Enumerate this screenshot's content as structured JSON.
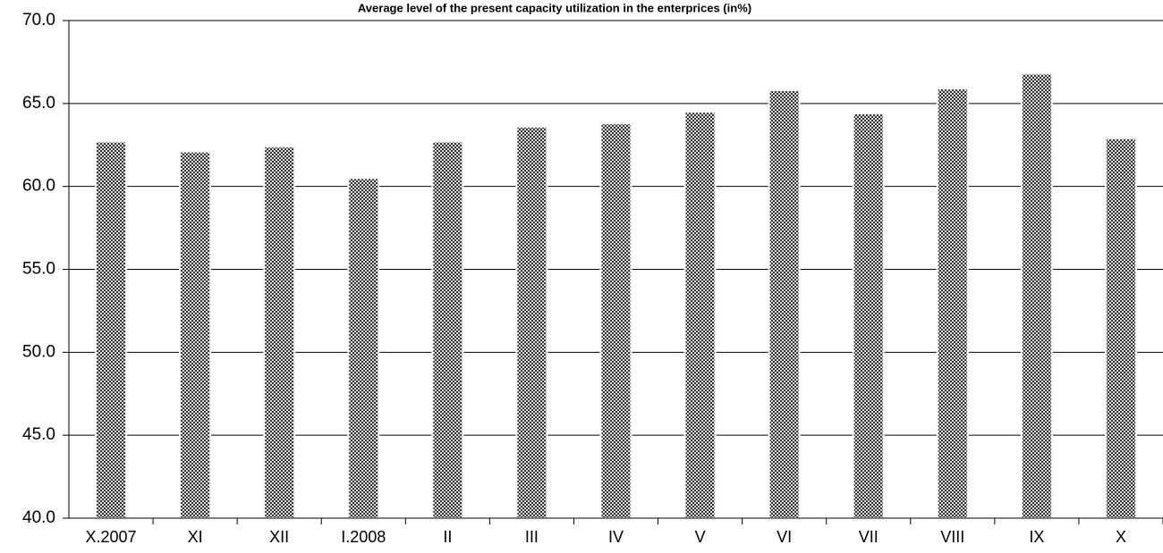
{
  "chart_data": {
    "type": "bar",
    "title": "Average level of the present capacity utilization in the enterprices (in%)",
    "categories": [
      "X.2007",
      "XI",
      "XII",
      "I.2008",
      "II",
      "III",
      "IV",
      "V",
      "VI",
      "VII",
      "VIII",
      "IX",
      "X"
    ],
    "values": [
      62.7,
      62.1,
      62.4,
      60.5,
      62.7,
      63.6,
      63.8,
      64.5,
      65.8,
      64.4,
      65.9,
      66.8,
      62.9
    ],
    "color": "#555555",
    "ylim": [
      40,
      70
    ],
    "yticks": [
      {
        "value": 40,
        "label": "40.0"
      },
      {
        "value": 45,
        "label": "45.0"
      },
      {
        "value": 50,
        "label": "50.0"
      },
      {
        "value": 55,
        "label": "55.0"
      },
      {
        "value": 60,
        "label": "60.0"
      },
      {
        "value": 65,
        "label": "65.0"
      },
      {
        "value": 70,
        "label": "70.0"
      }
    ],
    "grid": true
  }
}
